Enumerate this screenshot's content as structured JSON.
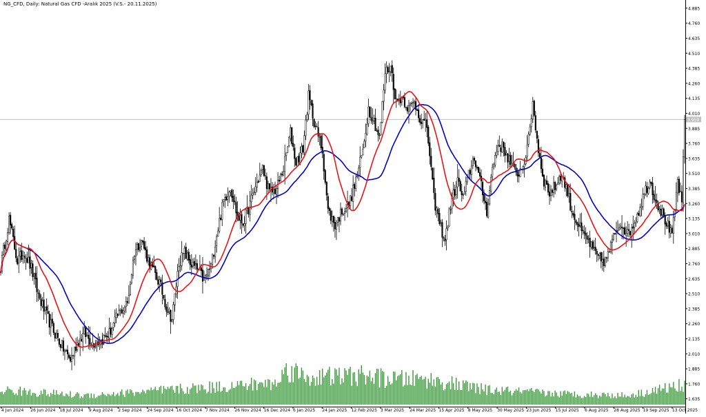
{
  "chart_data": {
    "type": "candlestick",
    "title": "NG_CFD, Daily:  Natural Gas CFD -Aralık 2025 (V.S.- 20.11.2025)",
    "y_ticks": [
      "4.885",
      "4.760",
      "4.635",
      "4.510",
      "4.385",
      "4.260",
      "4.135",
      "4.010",
      "3.885",
      "3.760",
      "3.635",
      "3.510",
      "3.385",
      "3.260",
      "3.135",
      "3.010",
      "2.885",
      "2.760",
      "2.635",
      "2.510",
      "2.385",
      "2.260",
      "2.135",
      "2.010",
      "1.885",
      "1.760",
      "1.635"
    ],
    "ylim": [
      1.57,
      4.93
    ],
    "current_price": 3.959,
    "current_price_label": "3.959",
    "x_tick_labels": [
      "4 Jun 2024",
      "26 Jun 2024",
      "18 Jul 2024",
      "9 Aug 2024",
      "2 Sep 2024",
      "24 Sep 2024",
      "16 Oct 2024",
      "7 Nov 2024",
      "26 Nov 2024",
      "16 Dec 2024",
      "6 Jan 2025",
      "24 Jan 2025",
      "12 Feb 2025",
      "3 Mar 2025",
      "24 Mar 2025",
      "15 Apr 2025",
      "8 May 2025",
      "30 May 2025",
      "23 Jun 2025",
      "15 Jul 2025",
      "6 Aug 2025",
      "28 Aug 2025",
      "19 Sep 2025",
      "13 Oct 2025"
    ],
    "price_anchors": [
      [
        0,
        2.73
      ],
      [
        6,
        3.13
      ],
      [
        12,
        2.78
      ],
      [
        17,
        2.86
      ],
      [
        22,
        2.72
      ],
      [
        27,
        2.5
      ],
      [
        32,
        2.35
      ],
      [
        38,
        2.2
      ],
      [
        45,
        2.05
      ],
      [
        50,
        1.96
      ],
      [
        55,
        2.1
      ],
      [
        60,
        2.18
      ],
      [
        66,
        2.1
      ],
      [
        72,
        2.12
      ],
      [
        78,
        2.18
      ],
      [
        85,
        2.35
      ],
      [
        91,
        2.43
      ],
      [
        96,
        2.86
      ],
      [
        101,
        2.96
      ],
      [
        105,
        2.82
      ],
      [
        109,
        2.71
      ],
      [
        114,
        2.6
      ],
      [
        119,
        2.4
      ],
      [
        123,
        2.3
      ],
      [
        128,
        2.77
      ],
      [
        132,
        2.85
      ],
      [
        137,
        2.75
      ],
      [
        142,
        2.7
      ],
      [
        146,
        2.62
      ],
      [
        151,
        2.74
      ],
      [
        155,
        3.0
      ],
      [
        160,
        3.28
      ],
      [
        165,
        3.4
      ],
      [
        170,
        3.15
      ],
      [
        174,
        3.1
      ],
      [
        178,
        3.22
      ],
      [
        183,
        3.4
      ],
      [
        188,
        3.55
      ],
      [
        193,
        3.35
      ],
      [
        198,
        3.38
      ],
      [
        203,
        3.55
      ],
      [
        208,
        3.85
      ],
      [
        212,
        3.6
      ],
      [
        217,
        3.72
      ],
      [
        221,
        4.15
      ],
      [
        226,
        3.9
      ],
      [
        231,
        3.7
      ],
      [
        235,
        3.2
      ],
      [
        240,
        3.08
      ],
      [
        245,
        3.2
      ],
      [
        250,
        3.25
      ],
      [
        255,
        3.45
      ],
      [
        260,
        3.7
      ],
      [
        264,
        4.05
      ],
      [
        268,
        3.95
      ],
      [
        272,
        3.8
      ],
      [
        276,
        4.35
      ],
      [
        280,
        4.4
      ],
      [
        284,
        4.1
      ],
      [
        288,
        4.15
      ],
      [
        293,
        4.05
      ],
      [
        297,
        4.1
      ],
      [
        302,
        3.95
      ],
      [
        306,
        3.9
      ],
      [
        311,
        3.3
      ],
      [
        315,
        3.1
      ],
      [
        319,
        2.95
      ],
      [
        323,
        3.25
      ],
      [
        328,
        3.45
      ],
      [
        332,
        3.3
      ],
      [
        336,
        3.5
      ],
      [
        340,
        3.65
      ],
      [
        345,
        3.4
      ],
      [
        349,
        3.2
      ],
      [
        353,
        3.55
      ],
      [
        357,
        3.75
      ],
      [
        361,
        3.72
      ],
      [
        366,
        3.6
      ],
      [
        370,
        3.5
      ],
      [
        374,
        3.55
      ],
      [
        378,
        3.7
      ],
      [
        382,
        4.1
      ],
      [
        386,
        3.7
      ],
      [
        390,
        3.45
      ],
      [
        394,
        3.35
      ],
      [
        398,
        3.4
      ],
      [
        402,
        3.5
      ],
      [
        406,
        3.4
      ],
      [
        410,
        3.2
      ],
      [
        414,
        3.1
      ],
      [
        418,
        3.0
      ],
      [
        422,
        2.95
      ],
      [
        426,
        2.85
      ],
      [
        430,
        2.8
      ],
      [
        434,
        2.78
      ],
      [
        438,
        2.9
      ],
      [
        442,
        3.05
      ],
      [
        446,
        3.1
      ],
      [
        450,
        3.0
      ],
      [
        454,
        3.08
      ],
      [
        458,
        3.2
      ],
      [
        462,
        3.35
      ],
      [
        466,
        3.45
      ],
      [
        470,
        3.3
      ],
      [
        474,
        3.2
      ],
      [
        478,
        3.1
      ],
      [
        482,
        2.98
      ],
      [
        486,
        3.45
      ],
      [
        489,
        3.25
      ],
      [
        491,
        3.96
      ]
    ],
    "volume_anchors": [
      [
        0,
        0.4
      ],
      [
        60,
        0.25
      ],
      [
        140,
        0.45
      ],
      [
        200,
        0.6
      ],
      [
        205,
        1.0
      ],
      [
        220,
        0.75
      ],
      [
        260,
        0.8
      ],
      [
        280,
        0.7
      ],
      [
        305,
        0.7
      ],
      [
        350,
        0.4
      ],
      [
        400,
        0.3
      ],
      [
        450,
        0.25
      ],
      [
        491,
        0.55
      ]
    ],
    "red_ma_label": "",
    "blue_ma_label": ""
  }
}
